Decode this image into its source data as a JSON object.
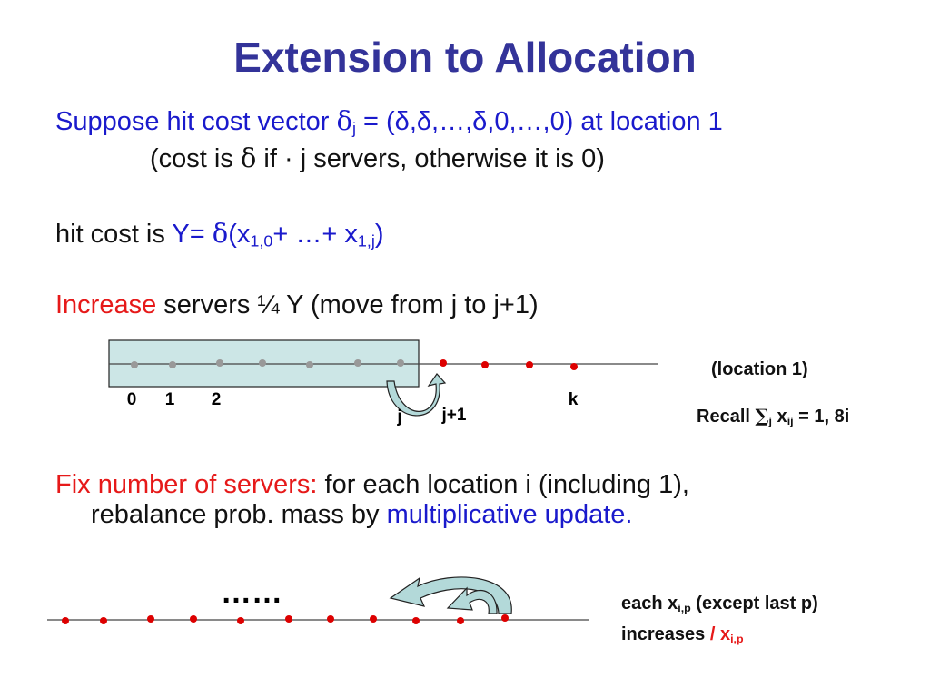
{
  "title": "Extension to Allocation",
  "line1": {
    "suppose": "Suppose hit cost vector ",
    "delta": "δ",
    "sub_j": "j",
    "vector": " = (δ,δ,…,δ,0,…,0) at location 1"
  },
  "line2": {
    "open": "(cost is ",
    "delta": "δ",
    "mid": " if · j servers, otherwise it is 0)"
  },
  "line3": {
    "prefix": "hit cost is ",
    "y_eq": "Y= ",
    "delta": "δ",
    "x_open": "(x",
    "sub_10": "1,0",
    "plus": "+ …+ x",
    "sub_1j": "1,j",
    "close": ")"
  },
  "line4": {
    "increase": "Increase",
    "rest": " servers ¼ Y (move from j to j+1)"
  },
  "diagram1": {
    "labels": {
      "l0": "0",
      "l1": "1",
      "l2": "2",
      "lj": "j",
      "lj1": "j+1",
      "lk": "k"
    },
    "location": "(location 1)",
    "recall": {
      "word": "Recall ",
      "sigma": "∑",
      "sub_j": "j",
      "x": " x",
      "sub_ij": "ij",
      "rest": " = 1,  8i"
    }
  },
  "line5": {
    "fix": "Fix number of servers:",
    "rest": " for each location i (including 1),"
  },
  "line6": {
    "prefix": "rebalance prob. mass by ",
    "mult": "multiplicative update."
  },
  "diagram2": {
    "dots": "……",
    "each": {
      "text": "each x",
      "sub": "i,p",
      "rest": " (except last p)"
    },
    "increases": {
      "text": "increases  ",
      "slash": "/",
      "x": " x",
      "sub": "i,p"
    }
  },
  "colors": {
    "title": "#333399",
    "blue": "#1a1acc",
    "red": "#e61919",
    "box_fill": "#cce6e6",
    "arrow_fill": "#b3d9d9"
  }
}
